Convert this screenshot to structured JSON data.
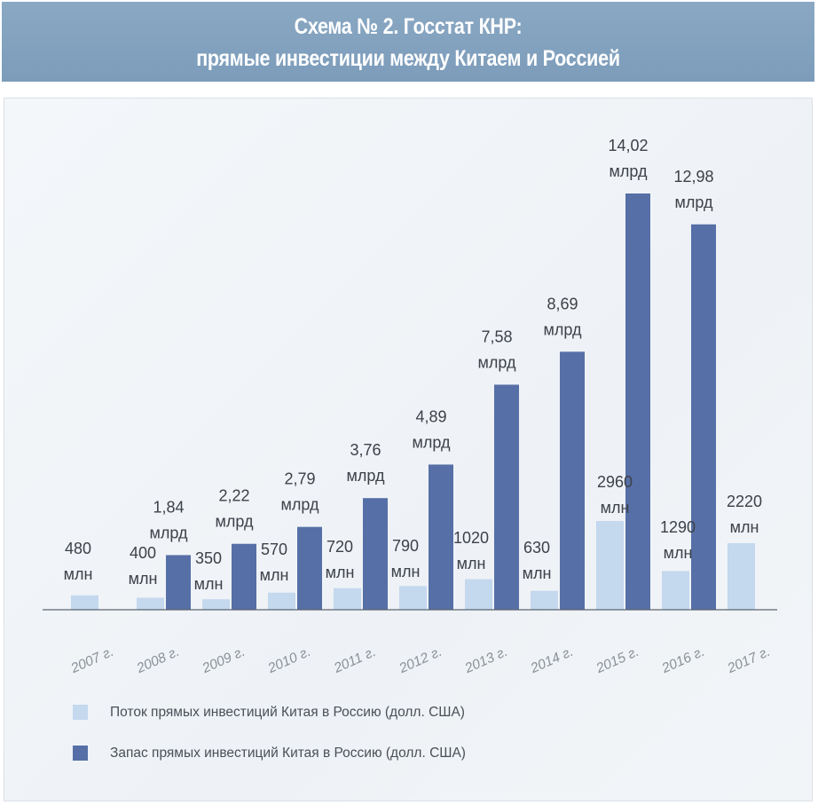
{
  "header": {
    "title_line1": "Схема № 2. Госстат КНР:",
    "title_line2": "прямые инвестиции между Китаем и Россией"
  },
  "colors": {
    "flow": "#c4d8ee",
    "stock": "#566fa6",
    "header_bg": "#819fbd",
    "label": "#3d4148"
  },
  "chart_data": {
    "type": "bar",
    "categories": [
      "2007 г.",
      "2008 г.",
      "2009 г.",
      "2010 г.",
      "2011 г.",
      "2012 г.",
      "2013 г.",
      "2014 г.",
      "2015 г.",
      "2016 г.",
      "2017 г."
    ],
    "series": [
      {
        "name": "Поток прямых инвестиций Китая в Россию (долл. США)",
        "values": [
          480,
          400,
          350,
          570,
          720,
          790,
          1020,
          630,
          2960,
          1290,
          2220
        ],
        "labels": [
          [
            "480",
            "млн"
          ],
          [
            "400",
            "млн"
          ],
          [
            "350",
            "млн"
          ],
          [
            "570",
            "млн"
          ],
          [
            "720",
            "млн"
          ],
          [
            "790",
            "млн"
          ],
          [
            "1020",
            "млн"
          ],
          [
            "630",
            "млн"
          ],
          [
            "2960",
            "млн"
          ],
          [
            "1290",
            "млн"
          ],
          [
            "2220",
            "млн"
          ]
        ]
      },
      {
        "name": "Запас прямых инвестиций Китая в Россию (долл. США)",
        "values": [
          null,
          1840,
          2220,
          2790,
          3760,
          4890,
          7580,
          8690,
          14020,
          12980,
          null
        ],
        "labels": [
          null,
          [
            "1,84",
            "млрд"
          ],
          [
            "2,22",
            "млрд"
          ],
          [
            "2,79",
            "млрд"
          ],
          [
            "3,76",
            "млрд"
          ],
          [
            "4,89",
            "млрд"
          ],
          [
            "7,58",
            "млрд"
          ],
          [
            "8,69",
            "млрд"
          ],
          [
            "14,02",
            "млрд"
          ],
          [
            "12,98",
            "млрд"
          ],
          null
        ]
      }
    ],
    "legend_position": "bottom-left",
    "grid": false
  },
  "legend": {
    "flow_label": "Поток прямых инвестиций Китая в Россию (долл. США)",
    "stock_label": "Запас прямых инвестиций Китая в Россию (долл. США)"
  }
}
